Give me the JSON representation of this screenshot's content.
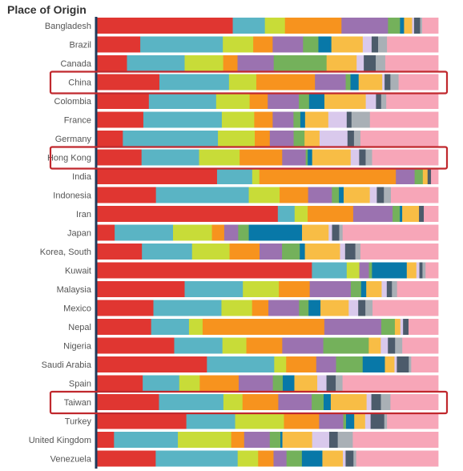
{
  "chart_data": {
    "type": "bar",
    "stacked": true,
    "orientation": "horizontal",
    "normalized": true,
    "title": "Place of Origin",
    "categories": [
      "Bangladesh",
      "Brazil",
      "Canada",
      "China",
      "Colombia",
      "France",
      "Germany",
      "Hong Kong",
      "India",
      "Indonesia",
      "Iran",
      "Japan",
      "Korea, South",
      "Kuwait",
      "Malaysia",
      "Mexico",
      "Nepal",
      "Nigeria",
      "Saudi Arabia",
      "Spain",
      "Taiwan",
      "Turkey",
      "United Kingdom",
      "Venezuela"
    ],
    "highlighted": [
      "China",
      "Hong Kong",
      "Taiwan"
    ],
    "highlight_color": "#c0282d",
    "segment_colors": [
      "#e03631",
      "#5ab4c4",
      "#c8dc38",
      "#f7931e",
      "#9b72b0",
      "#74b15b",
      "#0878a8",
      "#f8bd45",
      "#d9c9ec",
      "#4c5b6b",
      "#a9b0b6",
      "#f7a6b8"
    ],
    "rows": [
      [
        0.406,
        0.096,
        0.06,
        0.169,
        0.139,
        0.036,
        0.012,
        0.024,
        0.006,
        0.018,
        0.006,
        0.048
      ],
      [
        0.127,
        0.242,
        0.089,
        0.057,
        0.089,
        0.045,
        0.038,
        0.092,
        0.026,
        0.019,
        0.026,
        0.15
      ],
      [
        0.088,
        0.169,
        0.113,
        0.042,
        0.106,
        0.155,
        0.0,
        0.088,
        0.021,
        0.035,
        0.028,
        0.155
      ],
      [
        0.183,
        0.204,
        0.08,
        0.172,
        0.09,
        0.014,
        0.024,
        0.069,
        0.007,
        0.017,
        0.024,
        0.116
      ],
      [
        0.152,
        0.197,
        0.098,
        0.053,
        0.091,
        0.03,
        0.045,
        0.121,
        0.03,
        0.015,
        0.015,
        0.152
      ],
      [
        0.136,
        0.23,
        0.095,
        0.054,
        0.061,
        0.02,
        0.014,
        0.068,
        0.054,
        0.014,
        0.054,
        0.2
      ],
      [
        0.076,
        0.279,
        0.108,
        0.044,
        0.07,
        0.032,
        0.0,
        0.044,
        0.082,
        0.019,
        0.019,
        0.228
      ],
      [
        0.131,
        0.169,
        0.119,
        0.125,
        0.069,
        0.006,
        0.013,
        0.113,
        0.025,
        0.019,
        0.019,
        0.194
      ],
      [
        0.352,
        0.103,
        0.021,
        0.4,
        0.055,
        0.024,
        0.0,
        0.014,
        0.0,
        0.01,
        0.0,
        0.021
      ],
      [
        0.176,
        0.277,
        0.092,
        0.085,
        0.071,
        0.021,
        0.014,
        0.078,
        0.021,
        0.021,
        0.021,
        0.141
      ],
      [
        0.528,
        0.049,
        0.038,
        0.133,
        0.115,
        0.021,
        0.007,
        0.049,
        0.0,
        0.014,
        0.0,
        0.042
      ],
      [
        0.052,
        0.171,
        0.114,
        0.036,
        0.041,
        0.031,
        0.156,
        0.078,
        0.01,
        0.021,
        0.01,
        0.28
      ],
      [
        0.132,
        0.147,
        0.11,
        0.088,
        0.066,
        0.052,
        0.015,
        0.103,
        0.015,
        0.03,
        0.015,
        0.228
      ],
      [
        0.63,
        0.102,
        0.037,
        0.0,
        0.028,
        0.009,
        0.102,
        0.028,
        0.009,
        0.009,
        0.009,
        0.037
      ],
      [
        0.256,
        0.17,
        0.105,
        0.09,
        0.12,
        0.03,
        0.015,
        0.045,
        0.015,
        0.015,
        0.015,
        0.12
      ],
      [
        0.166,
        0.2,
        0.09,
        0.048,
        0.09,
        0.028,
        0.035,
        0.083,
        0.028,
        0.021,
        0.021,
        0.193
      ],
      [
        0.159,
        0.111,
        0.04,
        0.357,
        0.167,
        0.04,
        0.0,
        0.016,
        0.008,
        0.016,
        0.0,
        0.087
      ],
      [
        0.226,
        0.141,
        0.07,
        0.105,
        0.12,
        0.133,
        0.0,
        0.035,
        0.021,
        0.021,
        0.021,
        0.105
      ],
      [
        0.322,
        0.197,
        0.035,
        0.088,
        0.058,
        0.078,
        0.065,
        0.028,
        0.007,
        0.035,
        0.007,
        0.079
      ],
      [
        0.134,
        0.107,
        0.06,
        0.114,
        0.1,
        0.029,
        0.034,
        0.067,
        0.027,
        0.027,
        0.02,
        0.28
      ],
      [
        0.182,
        0.189,
        0.056,
        0.105,
        0.098,
        0.035,
        0.021,
        0.105,
        0.014,
        0.028,
        0.028,
        0.14
      ],
      [
        0.262,
        0.143,
        0.143,
        0.103,
        0.071,
        0.008,
        0.024,
        0.032,
        0.016,
        0.04,
        0.008,
        0.15
      ],
      [
        0.05,
        0.187,
        0.156,
        0.038,
        0.075,
        0.031,
        0.006,
        0.087,
        0.05,
        0.025,
        0.044,
        0.25
      ],
      [
        0.172,
        0.24,
        0.06,
        0.045,
        0.038,
        0.045,
        0.06,
        0.06,
        0.008,
        0.023,
        0.008,
        0.24
      ]
    ]
  }
}
